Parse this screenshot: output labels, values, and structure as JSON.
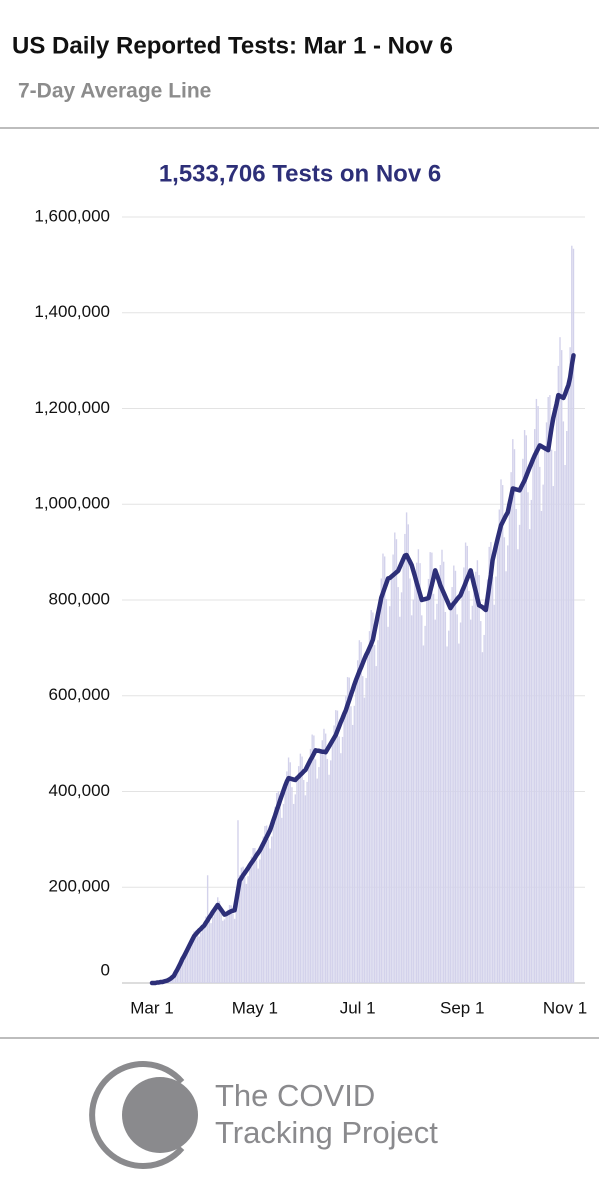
{
  "chart_data": {
    "type": "bar",
    "title": "US Daily Reported Tests: Mar 1 - Nov 6",
    "subtitle": "7-Day Average Line",
    "annotation": "1,533,706 Tests on Nov 6",
    "categories": [
      "Mar 1",
      null,
      null,
      null,
      null,
      null,
      null,
      null,
      null,
      null,
      null,
      null,
      null,
      null,
      null,
      null,
      null,
      null,
      null,
      null,
      null,
      null,
      null,
      null,
      null,
      null,
      null,
      null,
      null,
      null,
      null,
      null,
      null,
      null,
      null,
      null,
      null,
      null,
      null,
      null,
      null,
      null,
      null,
      null,
      null,
      null,
      null,
      null,
      null,
      null,
      null,
      null,
      null,
      null,
      null,
      null,
      null,
      null,
      null,
      null,
      null,
      "May 1",
      null,
      null,
      null,
      null,
      null,
      null,
      null,
      null,
      null,
      null,
      null,
      null,
      null,
      null,
      null,
      null,
      null,
      null,
      null,
      null,
      null,
      null,
      null,
      null,
      null,
      null,
      null,
      null,
      null,
      null,
      null,
      null,
      null,
      null,
      null,
      null,
      null,
      null,
      null,
      null,
      null,
      null,
      null,
      null,
      null,
      null,
      null,
      null,
      null,
      null,
      null,
      null,
      null,
      null,
      null,
      null,
      null,
      null,
      null,
      null,
      "Jul 1",
      null,
      null,
      null,
      null,
      null,
      null,
      null,
      null,
      null,
      null,
      null,
      null,
      null,
      null,
      null,
      null,
      null,
      null,
      null,
      null,
      null,
      null,
      null,
      null,
      null,
      null,
      null,
      null,
      null,
      null,
      null,
      null,
      null,
      null,
      null,
      null,
      null,
      null,
      null,
      null,
      null,
      null,
      null,
      null,
      null,
      null,
      null,
      null,
      null,
      null,
      null,
      null,
      null,
      null,
      null,
      null,
      null,
      null,
      null,
      null,
      null,
      "Sep 1",
      null,
      null,
      null,
      null,
      null,
      null,
      null,
      null,
      null,
      null,
      null,
      null,
      null,
      null,
      null,
      null,
      null,
      null,
      null,
      null,
      null,
      null,
      null,
      null,
      null,
      null,
      null,
      null,
      null,
      null,
      null,
      null,
      null,
      null,
      null,
      null,
      null,
      null,
      null,
      null,
      null,
      null,
      null,
      null,
      null,
      null,
      null,
      null,
      null,
      null,
      null,
      null,
      null,
      null,
      null,
      null,
      null,
      null,
      null,
      null,
      "Nov 1",
      null,
      null,
      null,
      null,
      null
    ],
    "series": [
      {
        "type": "bar",
        "color": "#d3d2eb",
        "values": [
          0,
          0,
          0,
          1000,
          1000,
          2000,
          2000,
          3000,
          4000,
          5000,
          8000,
          10000,
          12000,
          14000,
          19000,
          26000,
          35000,
          44000,
          55000,
          60000,
          60000,
          62000,
          72000,
          84000,
          96000,
          108000,
          110000,
          102000,
          97000,
          105000,
          117000,
          126000,
          139000,
          225000,
          132000,
          125000,
          138000,
          153000,
          166000,
          179000,
          171000,
          147000,
          130000,
          133000,
          144000,
          153000,
          163000,
          162000,
          145000,
          134000,
          160000,
          340000,
          225000,
          241000,
          243000,
          221000,
          207000,
          223000,
          246000,
          264000,
          282000,
          282000,
          256000,
          239000,
          258000,
          284000,
          306000,
          328000,
          329000,
          300000,
          281000,
          306000,
          340000,
          368000,
          397000,
          401000,
          367000,
          345000,
          374000,
          412000,
          442000,
          471000,
          461000,
          409000,
          374000,
          394000,
          428000,
          453000,
          479000,
          473000,
          424000,
          392000,
          420000,
          459000,
          489000,
          519000,
          517000,
          467000,
          427000,
          451000,
          484000,
          507000,
          531000,
          521000,
          468000,
          435000,
          465000,
          506000,
          538000,
          570000,
          569000,
          515000,
          480000,
          514000,
          562000,
          599000,
          639000,
          638000,
          578000,
          539000,
          579000,
          633000,
          674000,
          716000,
          712000,
          641000,
          596000,
          637000,
          692000,
          735000,
          779000,
          774000,
          706000,
          662000,
          716000,
          787000,
          845000,
          897000,
          891000,
          802000,
          744000,
          787000,
          849000,
          895000,
          941000,
          927000,
          827000,
          765000,
          816000,
          885000,
          938000,
          983000,
          958000,
          845000,
          768000,
          801000,
          849000,
          878000,
          906000,
          877000,
          768000,
          705000,
          746000,
          803000,
          844000,
          900000,
          899000,
          813000,
          759000,
          792000,
          842000,
          873000,
          905000,
          880000,
          775000,
          703000,
          736000,
          783000,
          827000,
          872000,
          861000,
          770000,
          709000,
          753000,
          819000,
          868000,
          920000,
          913000,
          819000,
          759000,
          788000,
          832000,
          859000,
          883000,
          852000,
          756000,
          691000,
          727000,
          779000,
          843000,
          911000,
          921000,
          848000,
          790000,
          849000,
          928000,
          989000,
          1052000,
          1040000,
          931000,
          860000,
          914000,
          1000000,
          1067000,
          1136000,
          1115000,
          990000,
          906000,
          957000,
          1036000,
          1095000,
          1155000,
          1144000,
          1025000,
          948000,
          1009000,
          1094000,
          1157000,
          1220000,
          1205000,
          1078000,
          986000,
          1041000,
          1117000,
          1171000,
          1224000,
          1228000,
          1114000,
          1038000,
          1111000,
          1210000,
          1289000,
          1349000,
          1322000,
          1173000,
          1082000,
          1153000,
          1249000,
          1328000,
          1540000,
          1533706
        ]
      },
      {
        "type": "line",
        "color": "#2d2f78",
        "values": [
          0,
          0,
          0,
          1000,
          1000,
          2000,
          2000,
          3000,
          4000,
          5000,
          7000,
          9000,
          12000,
          15000,
          22000,
          28000,
          35000,
          42000,
          50000,
          56000,
          63000,
          70000,
          77000,
          84000,
          91000,
          98000,
          102000,
          106000,
          110000,
          113000,
          117000,
          120000,
          126000,
          131000,
          137000,
          142000,
          148000,
          153000,
          158000,
          163000,
          158000,
          153000,
          148000,
          143000,
          144000,
          146000,
          148000,
          150000,
          151000,
          152000,
          172000,
          193000,
          214000,
          219000,
          225000,
          230000,
          235000,
          240000,
          246000,
          251000,
          256000,
          261000,
          267000,
          272000,
          277000,
          284000,
          291000,
          298000,
          305000,
          312000,
          319000,
          329000,
          340000,
          350000,
          361000,
          371000,
          382000,
          392000,
          402000,
          412000,
          421000,
          428000,
          427000,
          426000,
          425000,
          424000,
          428000,
          431000,
          435000,
          438000,
          442000,
          445000,
          452000,
          459000,
          466000,
          472000,
          479000,
          486000,
          485000,
          485000,
          484000,
          483000,
          483000,
          482000,
          488000,
          494000,
          500000,
          506000,
          512000,
          518000,
          527000,
          536000,
          545000,
          553000,
          562000,
          570000,
          581000,
          591000,
          602000,
          612000,
          623000,
          633000,
          642000,
          651000,
          659000,
          668000,
          677000,
          685000,
          692000,
          700000,
          708000,
          717000,
          735000,
          752000,
          770000,
          787000,
          805000,
          815000,
          825000,
          835000,
          845000,
          846000,
          849000,
          852000,
          855000,
          858000,
          861000,
          869000,
          877000,
          885000,
          893000,
          894000,
          887000,
          880000,
          873000,
          861000,
          849000,
          836000,
          824000,
          812000,
          800000,
          801000,
          802000,
          803000,
          804000,
          818000,
          832000,
          847000,
          862000,
          852000,
          842000,
          831000,
          823000,
          815000,
          807000,
          799000,
          791000,
          783000,
          788000,
          793000,
          797000,
          802000,
          806000,
          810000,
          819000,
          827000,
          836000,
          845000,
          853000,
          862000,
          847000,
          832000,
          818000,
          803000,
          789000,
          787000,
          785000,
          782000,
          779000,
          803000,
          828000,
          853000,
          883000,
          898000,
          913000,
          928000,
          942000,
          956000,
          963000,
          970000,
          977000,
          983000,
          1000000,
          1016000,
          1033000,
          1032000,
          1031000,
          1030000,
          1029000,
          1036000,
          1043000,
          1050000,
          1059000,
          1068000,
          1077000,
          1085000,
          1094000,
          1102000,
          1109000,
          1116000,
          1123000,
          1121000,
          1119000,
          1117000,
          1115000,
          1113000,
          1137000,
          1160000,
          1180000,
          1195000,
          1210000,
          1228000,
          1226000,
          1224000,
          1222000,
          1230000,
          1240000,
          1249000,
          1265000,
          1290000,
          1311000
        ]
      }
    ],
    "ylim": [
      0,
      1600000
    ],
    "yticks": [
      0,
      {
        "value": 200000,
        "label": "200,000"
      },
      {
        "value": 400000,
        "label": "400,000"
      },
      {
        "value": 600000,
        "label": "600,000"
      },
      {
        "value": 800000,
        "label": "800,000"
      },
      {
        "value": 1000000,
        "label": "1,000,000"
      },
      {
        "value": 1200000,
        "label": "1,200,000"
      },
      {
        "value": 1400000,
        "label": "1,400,000"
      },
      {
        "value": 1600000,
        "label": "1,600,000"
      }
    ],
    "grid": true
  },
  "logo": {
    "line1": "The COVID",
    "line2": "Tracking Project"
  }
}
